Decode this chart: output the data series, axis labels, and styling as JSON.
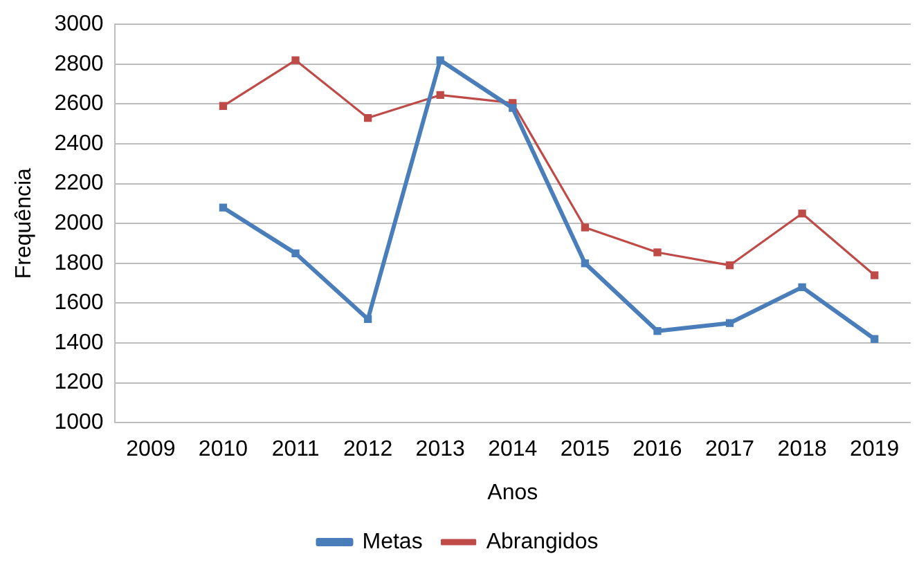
{
  "chart_data": {
    "type": "line",
    "xlabel": "Anos",
    "ylabel": "Frequência",
    "categories": [
      "2009",
      "2010",
      "2011",
      "2012",
      "2013",
      "2014",
      "2015",
      "2016",
      "2017",
      "2018",
      "2019"
    ],
    "series": [
      {
        "name": "Metas",
        "color": "#4a7ebb",
        "values": [
          null,
          2080,
          1850,
          1520,
          2820,
          2580,
          1800,
          1460,
          1500,
          1680,
          1420
        ]
      },
      {
        "name": "Abrangidos",
        "color": "#be4b48",
        "values": [
          null,
          2590,
          2820,
          2530,
          2645,
          2605,
          1980,
          1855,
          1790,
          2050,
          1740
        ]
      }
    ],
    "ylim": [
      1000,
      3000
    ],
    "yticks": [
      1000,
      1200,
      1400,
      1600,
      1800,
      2000,
      2200,
      2400,
      2600,
      2800,
      3000
    ],
    "grid": "y",
    "legend": "bottom",
    "marker": "square",
    "line_style": "solid"
  }
}
